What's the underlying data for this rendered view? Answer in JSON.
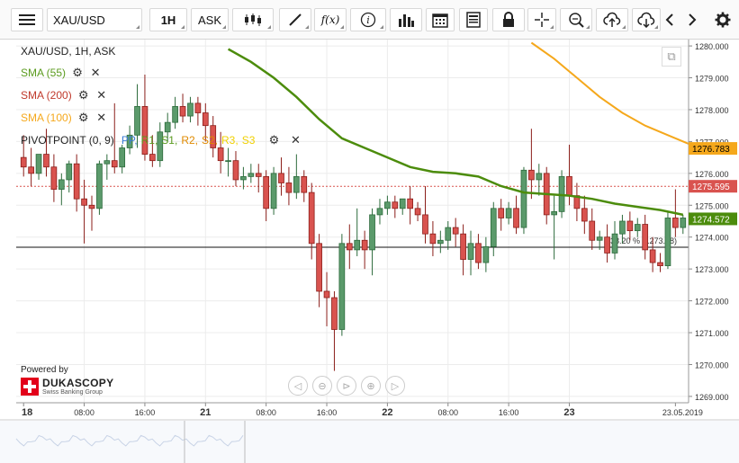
{
  "toolbar": {
    "instrument": "XAU/USD",
    "period": "1H",
    "side": "ASK",
    "tools": [
      "menu-icon",
      "candles-icon",
      "pen-icon",
      "function-icon",
      "info-icon",
      "bars-icon",
      "calendar-icon",
      "report-icon",
      "lock-icon",
      "crosshair-icon",
      "zoom-icon",
      "upload-icon",
      "download-icon",
      "prev-icon",
      "next-icon",
      "gear-icon"
    ],
    "fx_label": "f(x)",
    "info_label": "i"
  },
  "chart_title": "XAU/USD, 1H, ASK",
  "indicators": {
    "sma55": {
      "label": "SMA (55)",
      "color": "#5a9a1e"
    },
    "sma200": {
      "label": "SMA (200)",
      "color": "#c0392b"
    },
    "sma100": {
      "label": "SMA (100)",
      "color": "#f5a81c"
    },
    "pivot": {
      "label": "PIVOTPOINT (0, 9)",
      "items": [
        {
          "t": "PP",
          "c": "#3a7bd5"
        },
        {
          "t": "R1",
          "c": "#5a9a1e"
        },
        {
          "t": "S1",
          "c": "#5a9a1e"
        },
        {
          "t": "R2",
          "c": "#e08a00"
        },
        {
          "t": "S2",
          "c": "#e08a00"
        },
        {
          "t": "R3",
          "c": "#f0d000"
        },
        {
          "t": "S3",
          "c": "#f0d000"
        }
      ]
    }
  },
  "branding": {
    "powered": "Powered by",
    "name": "DUKASCOPY",
    "tagline": "Swiss Banking Group"
  },
  "colors": {
    "bull": "#5b9a6b",
    "bear": "#d9534f",
    "sma55": "#4c8c0c",
    "sma100": "#f5a81c",
    "grid": "#ececec"
  },
  "chart_data": {
    "type": "candlestick",
    "ylim": [
      1268.8,
      1280.2
    ],
    "y_ticks": [
      1269,
      1270,
      1271,
      1272,
      1273,
      1274,
      1275,
      1276,
      1277,
      1278,
      1279,
      1280
    ],
    "x_tick_labels": [
      "18",
      "08:00",
      "16:00",
      "21",
      "08:00",
      "16:00",
      "22",
      "08:00",
      "16:00",
      "23",
      "23.05.2019"
    ],
    "candles": [
      {
        "o": 1276.5,
        "h": 1277.2,
        "c": 1276.2,
        "l": 1275.9
      },
      {
        "o": 1276.2,
        "h": 1276.8,
        "c": 1276.0,
        "l": 1275.6
      },
      {
        "o": 1276.0,
        "h": 1276.6,
        "c": 1276.6,
        "l": 1275.8
      },
      {
        "o": 1276.6,
        "h": 1277.4,
        "c": 1276.2,
        "l": 1275.9
      },
      {
        "o": 1276.2,
        "h": 1276.6,
        "c": 1275.5,
        "l": 1275.1
      },
      {
        "o": 1275.5,
        "h": 1276.0,
        "c": 1275.8,
        "l": 1275.0
      },
      {
        "o": 1275.8,
        "h": 1276.4,
        "c": 1276.3,
        "l": 1275.4
      },
      {
        "o": 1276.3,
        "h": 1276.6,
        "c": 1275.2,
        "l": 1274.8
      },
      {
        "o": 1275.2,
        "h": 1275.8,
        "c": 1275.0,
        "l": 1273.8
      },
      {
        "o": 1275.0,
        "h": 1275.3,
        "c": 1274.9,
        "l": 1274.2
      },
      {
        "o": 1274.9,
        "h": 1276.4,
        "c": 1276.3,
        "l": 1274.7
      },
      {
        "o": 1276.3,
        "h": 1276.6,
        "c": 1276.4,
        "l": 1275.8
      },
      {
        "o": 1276.4,
        "h": 1278.2,
        "c": 1276.2,
        "l": 1276.0
      },
      {
        "o": 1276.2,
        "h": 1276.9,
        "c": 1276.8,
        "l": 1276.0
      },
      {
        "o": 1276.8,
        "h": 1277.5,
        "c": 1277.2,
        "l": 1276.6
      },
      {
        "o": 1277.2,
        "h": 1278.8,
        "c": 1278.1,
        "l": 1276.8
      },
      {
        "o": 1278.1,
        "h": 1279.1,
        "c": 1276.6,
        "l": 1276.4
      },
      {
        "o": 1276.6,
        "h": 1277.2,
        "c": 1276.4,
        "l": 1276.2
      },
      {
        "o": 1276.4,
        "h": 1277.6,
        "c": 1277.3,
        "l": 1276.2
      },
      {
        "o": 1277.3,
        "h": 1277.9,
        "c": 1277.6,
        "l": 1277.0
      },
      {
        "o": 1277.6,
        "h": 1278.4,
        "c": 1278.1,
        "l": 1277.4
      },
      {
        "o": 1278.1,
        "h": 1278.5,
        "c": 1277.8,
        "l": 1277.6
      },
      {
        "o": 1277.8,
        "h": 1278.4,
        "c": 1278.2,
        "l": 1277.6
      },
      {
        "o": 1278.2,
        "h": 1278.4,
        "c": 1277.9,
        "l": 1277.5
      },
      {
        "o": 1277.9,
        "h": 1278.2,
        "c": 1277.5,
        "l": 1277.0
      },
      {
        "o": 1277.5,
        "h": 1277.8,
        "c": 1276.8,
        "l": 1276.5
      },
      {
        "o": 1276.8,
        "h": 1277.3,
        "c": 1276.4,
        "l": 1276.0
      },
      {
        "o": 1276.4,
        "h": 1276.8,
        "c": 1276.4,
        "l": 1275.9
      },
      {
        "o": 1276.4,
        "h": 1276.7,
        "c": 1275.8,
        "l": 1275.6
      },
      {
        "o": 1275.8,
        "h": 1276.2,
        "c": 1275.9,
        "l": 1275.5
      },
      {
        "o": 1275.9,
        "h": 1276.3,
        "c": 1276.0,
        "l": 1275.7
      },
      {
        "o": 1276.0,
        "h": 1276.3,
        "c": 1275.9,
        "l": 1275.4
      },
      {
        "o": 1275.9,
        "h": 1276.1,
        "c": 1274.9,
        "l": 1274.5
      },
      {
        "o": 1274.9,
        "h": 1276.2,
        "c": 1276.0,
        "l": 1274.7
      },
      {
        "o": 1276.0,
        "h": 1276.5,
        "c": 1275.7,
        "l": 1275.3
      },
      {
        "o": 1275.7,
        "h": 1276.2,
        "c": 1275.4,
        "l": 1275.0
      },
      {
        "o": 1275.4,
        "h": 1276.6,
        "c": 1275.9,
        "l": 1275.2
      },
      {
        "o": 1275.9,
        "h": 1276.1,
        "c": 1275.4,
        "l": 1275.1
      },
      {
        "o": 1275.4,
        "h": 1275.7,
        "c": 1273.8,
        "l": 1273.3
      },
      {
        "o": 1273.8,
        "h": 1274.1,
        "c": 1272.3,
        "l": 1271.8
      },
      {
        "o": 1272.3,
        "h": 1272.9,
        "c": 1272.1,
        "l": 1271.2
      },
      {
        "o": 1272.1,
        "h": 1272.3,
        "c": 1271.1,
        "l": 1269.8
      },
      {
        "o": 1271.1,
        "h": 1274.1,
        "c": 1273.8,
        "l": 1270.9
      },
      {
        "o": 1273.8,
        "h": 1274.4,
        "c": 1273.6,
        "l": 1273.0
      },
      {
        "o": 1273.6,
        "h": 1274.9,
        "c": 1273.9,
        "l": 1273.4
      },
      {
        "o": 1273.9,
        "h": 1274.2,
        "c": 1273.6,
        "l": 1273.0
      },
      {
        "o": 1273.6,
        "h": 1274.9,
        "c": 1274.7,
        "l": 1272.8
      },
      {
        "o": 1274.7,
        "h": 1275.2,
        "c": 1274.9,
        "l": 1274.4
      },
      {
        "o": 1274.9,
        "h": 1275.3,
        "c": 1275.1,
        "l": 1274.7
      },
      {
        "o": 1275.1,
        "h": 1275.3,
        "c": 1274.9,
        "l": 1274.6
      },
      {
        "o": 1274.9,
        "h": 1275.2,
        "c": 1275.2,
        "l": 1274.7
      },
      {
        "o": 1275.2,
        "h": 1275.6,
        "c": 1274.9,
        "l": 1274.4
      },
      {
        "o": 1274.9,
        "h": 1275.1,
        "c": 1274.7,
        "l": 1274.5
      },
      {
        "o": 1274.7,
        "h": 1275.6,
        "c": 1274.1,
        "l": 1273.8
      },
      {
        "o": 1274.1,
        "h": 1274.5,
        "c": 1273.8,
        "l": 1273.4
      },
      {
        "o": 1273.8,
        "h": 1274.2,
        "c": 1273.9,
        "l": 1273.5
      },
      {
        "o": 1273.9,
        "h": 1274.5,
        "c": 1274.3,
        "l": 1273.6
      },
      {
        "o": 1274.3,
        "h": 1274.6,
        "c": 1274.1,
        "l": 1273.7
      },
      {
        "o": 1274.1,
        "h": 1274.4,
        "c": 1273.3,
        "l": 1272.8
      },
      {
        "o": 1273.3,
        "h": 1274.2,
        "c": 1273.8,
        "l": 1272.8
      },
      {
        "o": 1273.8,
        "h": 1274.1,
        "c": 1273.2,
        "l": 1273.0
      },
      {
        "o": 1273.2,
        "h": 1274.0,
        "c": 1273.7,
        "l": 1272.9
      },
      {
        "o": 1273.7,
        "h": 1275.1,
        "c": 1274.9,
        "l": 1273.4
      },
      {
        "o": 1274.9,
        "h": 1275.2,
        "c": 1274.6,
        "l": 1274.2
      },
      {
        "o": 1274.6,
        "h": 1275.1,
        "c": 1274.9,
        "l": 1274.4
      },
      {
        "o": 1274.9,
        "h": 1275.3,
        "c": 1274.3,
        "l": 1274.1
      },
      {
        "o": 1274.3,
        "h": 1276.2,
        "c": 1276.1,
        "l": 1274.1
      },
      {
        "o": 1276.1,
        "h": 1277.4,
        "c": 1275.8,
        "l": 1275.2
      },
      {
        "o": 1275.8,
        "h": 1276.3,
        "c": 1276.0,
        "l": 1275.3
      },
      {
        "o": 1276.0,
        "h": 1276.2,
        "c": 1274.7,
        "l": 1274.4
      },
      {
        "o": 1274.7,
        "h": 1275.3,
        "c": 1274.8,
        "l": 1273.3
      },
      {
        "o": 1274.8,
        "h": 1276.1,
        "c": 1275.9,
        "l": 1274.6
      },
      {
        "o": 1275.9,
        "h": 1276.9,
        "c": 1275.3,
        "l": 1275.0
      },
      {
        "o": 1275.3,
        "h": 1275.7,
        "c": 1274.9,
        "l": 1274.5
      },
      {
        "o": 1274.9,
        "h": 1275.3,
        "c": 1274.5,
        "l": 1274.1
      },
      {
        "o": 1274.5,
        "h": 1274.9,
        "c": 1273.9,
        "l": 1273.6
      },
      {
        "o": 1273.9,
        "h": 1274.2,
        "c": 1274.0,
        "l": 1273.6
      },
      {
        "o": 1274.0,
        "h": 1274.4,
        "c": 1273.5,
        "l": 1273.2
      },
      {
        "o": 1273.5,
        "h": 1274.5,
        "c": 1274.1,
        "l": 1273.3
      },
      {
        "o": 1274.1,
        "h": 1274.7,
        "c": 1274.5,
        "l": 1273.8
      },
      {
        "o": 1274.5,
        "h": 1274.8,
        "c": 1274.2,
        "l": 1273.9
      },
      {
        "o": 1274.2,
        "h": 1274.6,
        "c": 1274.4,
        "l": 1274.0
      },
      {
        "o": 1274.4,
        "h": 1274.7,
        "c": 1273.6,
        "l": 1273.3
      },
      {
        "o": 1273.6,
        "h": 1274.0,
        "c": 1273.2,
        "l": 1272.9
      },
      {
        "o": 1273.2,
        "h": 1273.5,
        "c": 1273.1,
        "l": 1272.9
      },
      {
        "o": 1273.1,
        "h": 1274.8,
        "c": 1274.6,
        "l": 1273.0
      },
      {
        "o": 1274.6,
        "h": 1275.5,
        "c": 1274.3,
        "l": 1274.0
      },
      {
        "o": 1274.3,
        "h": 1274.7,
        "c": 1274.6,
        "l": 1274.1
      }
    ],
    "sma55": [
      [
        27,
        1279.9
      ],
      [
        30,
        1279.5
      ],
      [
        33,
        1279.0
      ],
      [
        36,
        1278.4
      ],
      [
        39,
        1277.7
      ],
      [
        42,
        1277.1
      ],
      [
        45,
        1276.8
      ],
      [
        48,
        1276.5
      ],
      [
        51,
        1276.2
      ],
      [
        54,
        1276.05
      ],
      [
        57,
        1276.0
      ],
      [
        60,
        1275.9
      ],
      [
        63,
        1275.6
      ],
      [
        66,
        1275.4
      ],
      [
        69,
        1275.35
      ],
      [
        72,
        1275.3
      ],
      [
        75,
        1275.2
      ],
      [
        78,
        1275.05
      ],
      [
        81,
        1274.95
      ],
      [
        84,
        1274.85
      ],
      [
        87,
        1274.7
      ]
    ],
    "sma100": [
      [
        67,
        1280.1
      ],
      [
        70,
        1279.6
      ],
      [
        73,
        1279.0
      ],
      [
        76,
        1278.4
      ],
      [
        79,
        1277.9
      ],
      [
        82,
        1277.5
      ],
      [
        85,
        1277.2
      ],
      [
        88,
        1276.9
      ],
      [
        89,
        1276.8
      ]
    ],
    "dashed_level": 1275.595,
    "fib_level": 1273.68,
    "fib_label": "38.20 % (1273.68)",
    "price_labels": [
      {
        "value": 1276.783,
        "text": "1276.783",
        "bg": "#f5a81c",
        "fg": "#000"
      },
      {
        "value": 1275.595,
        "text": "1275.595",
        "bg": "#d9534f",
        "fg": "#fff"
      },
      {
        "value": 1274.572,
        "text": "1274.572",
        "bg": "#4c8c0c",
        "fg": "#fff"
      }
    ]
  }
}
